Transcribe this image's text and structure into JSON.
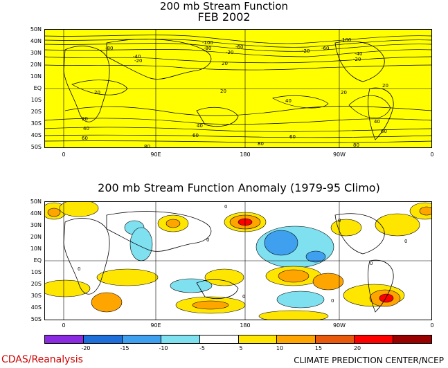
{
  "top_map": {
    "title_line1": "200 mb Stream Function",
    "title_line2": "FEB 2002",
    "background_color": "#ffff00",
    "lat_labels": [
      "50N",
      "40N",
      "30N",
      "20N",
      "10N",
      "EQ",
      "10S",
      "20S",
      "30S",
      "40S",
      "50S"
    ],
    "lon_labels": [
      "0",
      "90E",
      "180",
      "90W",
      "0"
    ],
    "contour_labels": [
      "-100",
      "-80",
      "-80",
      "-60",
      "-60",
      "-40",
      "-40",
      "-20",
      "-20",
      "-20",
      "-20",
      "20",
      "20",
      "20",
      "20",
      "20",
      "20",
      "40",
      "40",
      "40",
      "40",
      "60",
      "60",
      "60",
      "60",
      "80",
      "80",
      "80",
      "100"
    ]
  },
  "bottom_map": {
    "title": "200 mb Stream Function Anomaly (1979-95 Climo)",
    "lat_labels": [
      "50N",
      "40N",
      "30N",
      "20N",
      "10N",
      "EQ",
      "10S",
      "20S",
      "30S",
      "40S",
      "50S"
    ],
    "lon_labels": [
      "0",
      "90E",
      "180",
      "90W",
      "0"
    ],
    "contour_labels": [
      "0",
      "0",
      "0",
      "0",
      "0",
      "0",
      "0",
      "0"
    ]
  },
  "colorbar": {
    "tick_labels": [
      "-20",
      "-15",
      "-10",
      "-5",
      "5",
      "10",
      "15",
      "20"
    ],
    "colors": [
      "#8a2be2",
      "#1e6fd9",
      "#3fa0f0",
      "#7fe0f0",
      "#ffffff",
      "#ffe600",
      "#ffa500",
      "#e8590c",
      "#ff0000",
      "#990000"
    ]
  },
  "footer": {
    "left": "CDAS/Reanalysis",
    "right": "CLIMATE PREDICTION CENTER/NCEP",
    "left_color": "#cc0000"
  }
}
